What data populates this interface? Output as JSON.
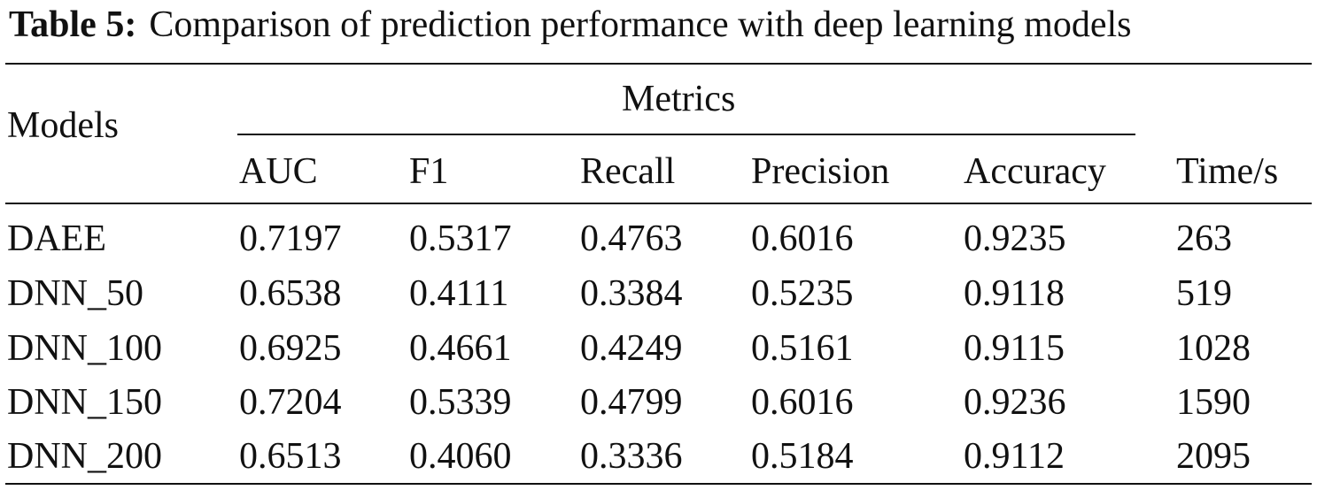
{
  "caption": {
    "label": "Table 5:",
    "text": "Comparison of prediction performance with deep learning models"
  },
  "table": {
    "models_header": "Models",
    "metrics_header": "Metrics",
    "columns": [
      "AUC",
      "F1",
      "Recall",
      "Precision",
      "Accuracy"
    ],
    "time_header": "Time/s",
    "rows": [
      {
        "model": "DAEE",
        "values": [
          "0.7197",
          "0.5317",
          "0.4763",
          "0.6016",
          "0.9235"
        ],
        "time": "263"
      },
      {
        "model": "DNN_50",
        "values": [
          "0.6538",
          "0.4111",
          "0.3384",
          "0.5235",
          "0.9118"
        ],
        "time": "519"
      },
      {
        "model": "DNN_100",
        "values": [
          "0.6925",
          "0.4661",
          "0.4249",
          "0.5161",
          "0.9115"
        ],
        "time": "1028"
      },
      {
        "model": "DNN_150",
        "values": [
          "0.7204",
          "0.5339",
          "0.4799",
          "0.6016",
          "0.9236"
        ],
        "time": "1590"
      },
      {
        "model": "DNN_200",
        "values": [
          "0.6513",
          "0.4060",
          "0.3336",
          "0.5184",
          "0.9112"
        ],
        "time": "2095"
      }
    ]
  }
}
